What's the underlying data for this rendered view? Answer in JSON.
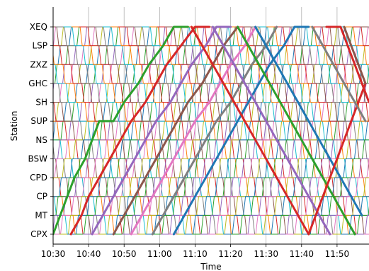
{
  "chart_data": {
    "type": "line",
    "title": "",
    "xlabel": "Time",
    "ylabel": "Station",
    "x_ticks": [
      "10:30",
      "10:40",
      "10:50",
      "11:00",
      "11:10",
      "11:20",
      "11:30",
      "11:40",
      "11:50"
    ],
    "xlim": [
      "10:30",
      "11:59"
    ],
    "stations": [
      "CPX",
      "MT",
      "CP",
      "CPD",
      "BSW",
      "NS",
      "SUP",
      "SH",
      "GHC",
      "ZXZ",
      "LSP",
      "XEQ"
    ],
    "grid": true,
    "legend": "none",
    "colors": [
      "#1f77b4",
      "#ff7f0e",
      "#2ca02c",
      "#d62728",
      "#9467bd",
      "#8c564b",
      "#e377c2",
      "#7f7f7f",
      "#bcbd22",
      "#17becf"
    ],
    "series": [
      {
        "color": "#2ca02c",
        "bold": true,
        "points": [
          [
            "10:30",
            "CPX"
          ],
          [
            "10:32",
            "MT"
          ],
          [
            "10:34",
            "CP"
          ],
          [
            "10:36",
            "CPD"
          ],
          [
            "10:39",
            "BSW"
          ],
          [
            "10:41",
            "NS"
          ],
          [
            "10:43",
            "SUP"
          ],
          [
            "10:47",
            "SUP"
          ],
          [
            "10:50",
            "SH"
          ],
          [
            "10:54",
            "GHC"
          ],
          [
            "10:57",
            "ZXZ"
          ],
          [
            "11:01",
            "LSP"
          ],
          [
            "11:04",
            "XEQ"
          ],
          [
            "11:08",
            "XEQ"
          ]
        ]
      },
      {
        "color": "#d62728",
        "bold": true,
        "points": [
          [
            "10:35",
            "CPX"
          ],
          [
            "10:38",
            "MT"
          ],
          [
            "10:40",
            "CP"
          ],
          [
            "10:43",
            "CPD"
          ],
          [
            "10:46",
            "BSW"
          ],
          [
            "10:49",
            "NS"
          ],
          [
            "10:52",
            "SUP"
          ],
          [
            "10:56",
            "SH"
          ],
          [
            "10:59",
            "GHC"
          ],
          [
            "11:02",
            "ZXZ"
          ],
          [
            "11:06",
            "LSP"
          ],
          [
            "11:10",
            "XEQ"
          ],
          [
            "11:14",
            "XEQ"
          ]
        ]
      },
      {
        "color": "#9467bd",
        "bold": true,
        "points": [
          [
            "10:41",
            "CPX"
          ],
          [
            "10:44",
            "MT"
          ],
          [
            "10:47",
            "CP"
          ],
          [
            "10:50",
            "CPD"
          ],
          [
            "10:53",
            "BSW"
          ],
          [
            "10:56",
            "NS"
          ],
          [
            "10:59",
            "SUP"
          ],
          [
            "11:03",
            "SH"
          ],
          [
            "11:06",
            "GHC"
          ],
          [
            "11:09",
            "ZXZ"
          ],
          [
            "11:13",
            "LSP"
          ],
          [
            "11:16",
            "XEQ"
          ],
          [
            "11:20",
            "XEQ"
          ]
        ]
      },
      {
        "color": "#8c564b",
        "bold": true,
        "points": [
          [
            "10:47",
            "CPX"
          ],
          [
            "10:50",
            "MT"
          ],
          [
            "10:53",
            "CP"
          ],
          [
            "10:56",
            "CPD"
          ],
          [
            "10:59",
            "BSW"
          ],
          [
            "11:02",
            "NS"
          ],
          [
            "11:05",
            "SUP"
          ],
          [
            "11:08",
            "SH"
          ],
          [
            "11:12",
            "GHC"
          ],
          [
            "11:15",
            "ZXZ"
          ],
          [
            "11:18",
            "LSP"
          ],
          [
            "11:22",
            "XEQ"
          ]
        ]
      },
      {
        "color": "#e377c2",
        "bold": true,
        "points": [
          [
            "10:52",
            "CPX"
          ],
          [
            "10:55",
            "MT"
          ],
          [
            "10:58",
            "CP"
          ],
          [
            "11:01",
            "CPD"
          ],
          [
            "11:04",
            "BSW"
          ],
          [
            "11:07",
            "NS"
          ],
          [
            "11:10",
            "SUP"
          ],
          [
            "11:14",
            "SH"
          ],
          [
            "11:17",
            "GHC"
          ],
          [
            "11:20",
            "ZXZ"
          ],
          [
            "11:24",
            "LSP"
          ],
          [
            "11:27",
            "XEQ"
          ]
        ]
      },
      {
        "color": "#7f7f7f",
        "bold": true,
        "points": [
          [
            "10:58",
            "CPX"
          ],
          [
            "11:01",
            "MT"
          ],
          [
            "11:04",
            "CP"
          ],
          [
            "11:07",
            "CPD"
          ],
          [
            "11:10",
            "BSW"
          ],
          [
            "11:13",
            "NS"
          ],
          [
            "11:16",
            "SUP"
          ],
          [
            "11:20",
            "SH"
          ],
          [
            "11:23",
            "GHC"
          ],
          [
            "11:26",
            "ZXZ"
          ],
          [
            "11:30",
            "LSP"
          ],
          [
            "11:33",
            "XEQ"
          ]
        ]
      },
      {
        "color": "#1f77b4",
        "bold": true,
        "points": [
          [
            "11:04",
            "CPX"
          ],
          [
            "11:07",
            "MT"
          ],
          [
            "11:10",
            "CP"
          ],
          [
            "11:13",
            "CPD"
          ],
          [
            "11:16",
            "BSW"
          ],
          [
            "11:19",
            "NS"
          ],
          [
            "11:22",
            "SUP"
          ],
          [
            "11:25",
            "SH"
          ],
          [
            "11:28",
            "GHC"
          ],
          [
            "11:31",
            "ZXZ"
          ],
          [
            "11:35",
            "LSP"
          ],
          [
            "11:38",
            "XEQ"
          ],
          [
            "11:42",
            "XEQ"
          ]
        ]
      },
      {
        "color": "#d62728",
        "bold": true,
        "points": [
          [
            "11:09",
            "XEQ"
          ],
          [
            "11:12",
            "LSP"
          ],
          [
            "11:15",
            "ZXZ"
          ],
          [
            "11:18",
            "GHC"
          ],
          [
            "11:21",
            "SH"
          ],
          [
            "11:24",
            "SUP"
          ],
          [
            "11:27",
            "NS"
          ],
          [
            "11:30",
            "BSW"
          ],
          [
            "11:33",
            "CPD"
          ],
          [
            "11:36",
            "CP"
          ],
          [
            "11:39",
            "MT"
          ],
          [
            "11:42",
            "CPX"
          ]
        ]
      },
      {
        "color": "#9467bd",
        "bold": true,
        "points": [
          [
            "11:15",
            "XEQ"
          ],
          [
            "11:18",
            "LSP"
          ],
          [
            "11:21",
            "ZXZ"
          ],
          [
            "11:24",
            "GHC"
          ],
          [
            "11:27",
            "SH"
          ],
          [
            "11:30",
            "SUP"
          ],
          [
            "11:33",
            "NS"
          ],
          [
            "11:36",
            "BSW"
          ],
          [
            "11:39",
            "CPD"
          ],
          [
            "11:42",
            "CP"
          ],
          [
            "11:45",
            "MT"
          ],
          [
            "11:48",
            "CPX"
          ]
        ]
      },
      {
        "color": "#2ca02c",
        "bold": true,
        "points": [
          [
            "11:22",
            "XEQ"
          ],
          [
            "11:25",
            "LSP"
          ],
          [
            "11:28",
            "ZXZ"
          ],
          [
            "11:31",
            "GHC"
          ],
          [
            "11:34",
            "SH"
          ],
          [
            "11:37",
            "SUP"
          ],
          [
            "11:40",
            "NS"
          ],
          [
            "11:43",
            "BSW"
          ],
          [
            "11:46",
            "CPD"
          ],
          [
            "11:49",
            "CP"
          ],
          [
            "11:52",
            "MT"
          ],
          [
            "11:55",
            "CPX"
          ]
        ]
      },
      {
        "color": "#1f77b4",
        "bold": true,
        "points": [
          [
            "11:27",
            "XEQ"
          ],
          [
            "11:30",
            "LSP"
          ],
          [
            "11:33",
            "ZXZ"
          ],
          [
            "11:36",
            "GHC"
          ],
          [
            "11:39",
            "SH"
          ],
          [
            "11:42",
            "SUP"
          ],
          [
            "11:45",
            "NS"
          ],
          [
            "11:48",
            "BSW"
          ],
          [
            "11:51",
            "CPD"
          ],
          [
            "11:54",
            "CP"
          ],
          [
            "11:57",
            "MT"
          ]
        ]
      },
      {
        "color": "#d62728",
        "bold": true,
        "points": [
          [
            "11:42",
            "CPX"
          ],
          [
            "11:44",
            "MT"
          ],
          [
            "11:46",
            "CP"
          ],
          [
            "11:48",
            "CPD"
          ],
          [
            "11:50",
            "BSW"
          ],
          [
            "11:52",
            "NS"
          ],
          [
            "11:54",
            "SUP"
          ],
          [
            "11:56",
            "SH"
          ],
          [
            "11:58",
            "GHC"
          ]
        ]
      },
      {
        "color": "#d62728",
        "bold": true,
        "points": [
          [
            "11:47",
            "XEQ"
          ],
          [
            "11:51",
            "XEQ"
          ],
          [
            "11:53",
            "LSP"
          ],
          [
            "11:55",
            "ZXZ"
          ],
          [
            "11:57",
            "GHC"
          ],
          [
            "11:59",
            "SH"
          ]
        ]
      },
      {
        "color": "#8c564b",
        "bold": true,
        "points": [
          [
            "11:52",
            "XEQ"
          ],
          [
            "11:54",
            "LSP"
          ],
          [
            "11:56",
            "ZXZ"
          ],
          [
            "11:58",
            "GHC"
          ]
        ]
      },
      {
        "color": "#7f7f7f",
        "bold": true,
        "points": [
          [
            "11:43",
            "XEQ"
          ],
          [
            "11:46",
            "LSP"
          ],
          [
            "11:49",
            "ZXZ"
          ],
          [
            "11:52",
            "GHC"
          ],
          [
            "11:55",
            "SH"
          ],
          [
            "11:58",
            "SUP"
          ]
        ]
      }
    ]
  }
}
